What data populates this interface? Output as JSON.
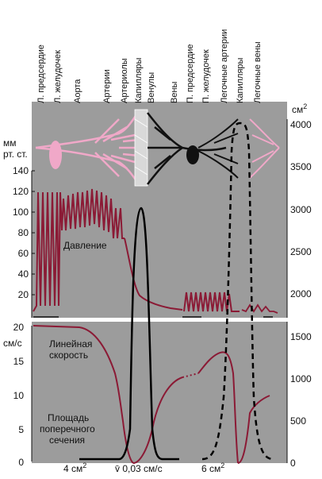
{
  "vessel_labels": [
    "Л. предсердие",
    "Л. желудочек",
    "Аорта",
    "Артерии",
    "Артериолы",
    "Капилляры",
    "Венулы",
    "Вены",
    "П. предсердие",
    "П. желудочек",
    "Легочные артерии",
    "Капилляры",
    "Легочные вены"
  ],
  "left_axis": {
    "pressure_unit": [
      "мм",
      "рт. ст."
    ],
    "pressure_ticks": [
      "140",
      "120",
      "100",
      "80",
      "60",
      "40",
      "20"
    ],
    "velocity_unit": "см/с",
    "velocity_ticks": [
      "20",
      "15",
      "10",
      "5",
      "0"
    ]
  },
  "right_axis": {
    "area_unit": "см",
    "area_unit_sup": "2",
    "upper_ticks": [
      "4000",
      "3500",
      "3000",
      "2500",
      "2000"
    ],
    "lower_ticks": [
      "1500",
      "1000",
      "500",
      "0"
    ]
  },
  "annotations": {
    "pressure": "Давление",
    "velocity_line1": "Линейная",
    "velocity_line2": "скорость",
    "area_line1": "Площадь",
    "area_line2": "поперечного",
    "area_line3": "сечения"
  },
  "bottom_labels": {
    "aorta_area": "4 см",
    "aorta_area_sup": "2",
    "capillary_velocity": "v̄ 0,03 см/с",
    "vena_cava_area": "6 см",
    "vena_cava_area_sup": "2"
  },
  "colors": {
    "pressure_curve": "#8b1a35",
    "velocity_curve": "#8b1a35",
    "area_curve": "#000000",
    "upper_panel_bg": "#9c9c9c",
    "systemic_arterial_tree": "#f0a8c8",
    "venous_tree": "#111111"
  }
}
